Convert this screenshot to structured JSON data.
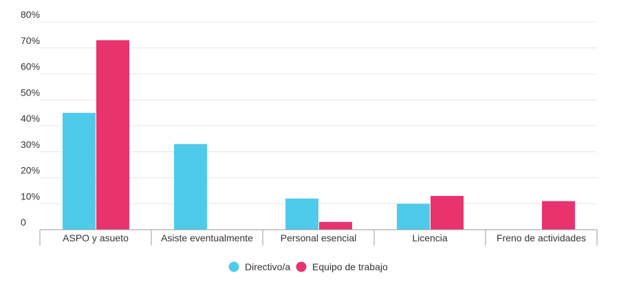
{
  "chart_data": {
    "type": "bar",
    "title": "",
    "xlabel": "",
    "ylabel": "",
    "categories": [
      "ASPO y asueto",
      "Asiste eventualmente",
      "Personal esencial",
      "Licencia",
      "Freno de actividades"
    ],
    "series": [
      {
        "name": "Directivo/a",
        "color": "#4ecbeb",
        "values": [
          45,
          33,
          12,
          10,
          0
        ]
      },
      {
        "name": "Equipo de trabajo",
        "color": "#e8336f",
        "values": [
          73,
          0,
          3,
          13,
          11
        ]
      }
    ],
    "yticks": [
      0,
      10,
      20,
      30,
      40,
      50,
      60,
      70,
      80
    ],
    "ytick_labels": [
      "0",
      "10%",
      "20%",
      "30%",
      "40%",
      "50%",
      "60%",
      "70%",
      "80%"
    ],
    "ylim": [
      0,
      80
    ],
    "grid": true,
    "legend_position": "bottom-center"
  }
}
